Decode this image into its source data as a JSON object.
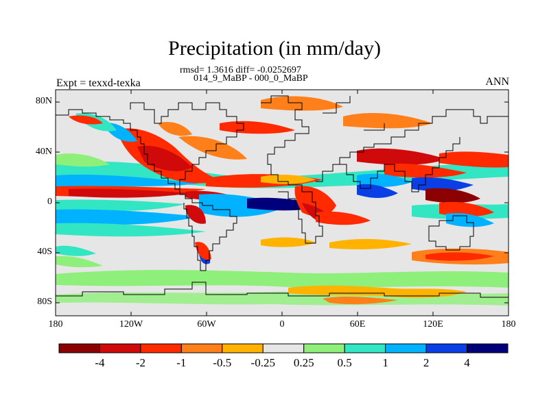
{
  "title": "Precipitation (in mm/day)",
  "stats_line": "rmsd= 1.3616 diff= -0.0252697",
  "periods_line": "014_9_MaBP - 000_0_MaBP",
  "experiment_label": "Expt = texxd-texka",
  "season_label": "ANN",
  "y_axis_ticks": [
    "80N",
    "40N",
    "0",
    "40S",
    "80S"
  ],
  "x_axis_ticks": [
    "180",
    "120W",
    "60W",
    "0",
    "60E",
    "120E",
    "180"
  ],
  "colorbar": {
    "labels": [
      "-4",
      "-2",
      "-1",
      "-0.5",
      "-0.25",
      "0.25",
      "0.5",
      "1",
      "2",
      "4"
    ],
    "colors": [
      "#8b0000",
      "#d00a0a",
      "#ff2a00",
      "#ff7f1a",
      "#ffb300",
      "#e6e6e6",
      "#8ef07a",
      "#33e6c3",
      "#00b2ff",
      "#0a3fe6",
      "#00007a"
    ]
  },
  "map": {
    "lon_range": [
      -180,
      180
    ],
    "lat_range": [
      -90,
      90
    ],
    "background_color": "#e6e6e6"
  }
}
